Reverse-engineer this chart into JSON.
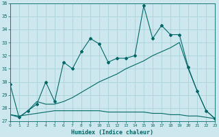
{
  "xlabel": "Humidex (Indice chaleur)",
  "ylabel": "",
  "bg_color": "#cce8ee",
  "grid_color": "#b0d4dc",
  "line_color": "#006666",
  "xlim": [
    0,
    23
  ],
  "ylim": [
    27,
    36
  ],
  "yticks": [
    27,
    28,
    29,
    30,
    31,
    32,
    33,
    34,
    35,
    36
  ],
  "xticks": [
    0,
    1,
    2,
    3,
    4,
    5,
    6,
    7,
    8,
    9,
    10,
    11,
    12,
    13,
    14,
    15,
    16,
    17,
    18,
    19,
    20,
    21,
    22,
    23
  ],
  "line1_x": [
    0,
    1,
    2,
    3,
    4,
    5,
    6,
    7,
    8,
    9,
    10,
    11,
    12,
    13,
    14,
    15,
    16,
    17,
    18,
    19,
    20,
    21,
    22,
    23
  ],
  "line1_y": [
    29.8,
    27.3,
    27.8,
    28.3,
    30.0,
    28.5,
    31.5,
    31.0,
    32.3,
    33.3,
    32.9,
    31.5,
    31.8,
    31.8,
    32.0,
    35.8,
    33.3,
    34.3,
    33.6,
    33.6,
    31.1,
    29.3,
    27.8,
    27.2
  ],
  "line2_x": [
    0,
    1,
    2,
    3,
    4,
    5,
    6,
    7,
    8,
    9,
    10,
    11,
    12,
    13,
    14,
    15,
    16,
    17,
    18,
    19,
    20,
    21,
    22,
    23
  ],
  "line2_y": [
    27.5,
    27.3,
    27.8,
    28.5,
    28.3,
    28.3,
    28.5,
    28.8,
    29.2,
    29.6,
    30.0,
    30.3,
    30.6,
    31.0,
    31.3,
    31.6,
    32.0,
    32.3,
    32.6,
    33.0,
    31.0,
    29.3,
    27.8,
    27.2
  ],
  "line3_x": [
    0,
    1,
    2,
    3,
    4,
    5,
    6,
    7,
    8,
    9,
    10,
    11,
    12,
    13,
    14,
    15,
    16,
    17,
    18,
    19,
    20,
    21,
    22,
    23
  ],
  "line3_y": [
    27.5,
    27.4,
    27.5,
    27.6,
    27.7,
    27.8,
    27.8,
    27.8,
    27.8,
    27.8,
    27.8,
    27.7,
    27.7,
    27.7,
    27.7,
    27.7,
    27.6,
    27.6,
    27.5,
    27.5,
    27.4,
    27.4,
    27.3,
    27.2
  ]
}
